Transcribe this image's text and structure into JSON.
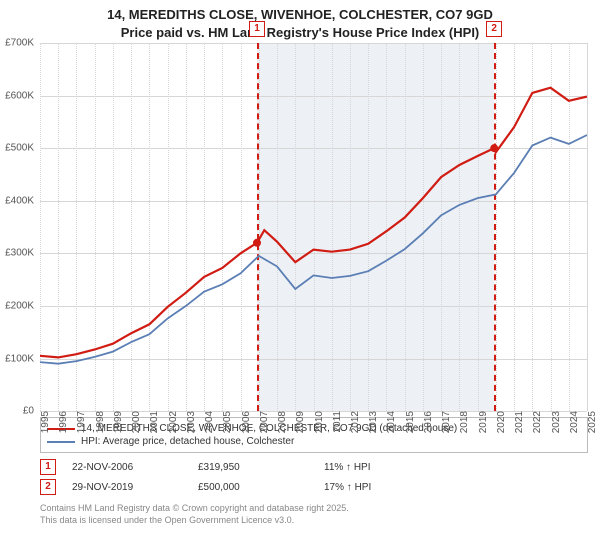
{
  "title_line1": "14, MEREDITHS CLOSE, WIVENHOE, COLCHESTER, CO7 9GD",
  "title_line2": "Price paid vs. HM Land Registry's House Price Index (HPI)",
  "chart": {
    "type": "line",
    "background_color": "#ffffff",
    "grid_color": "#d6d6d6",
    "shade_color": "#e8edf4",
    "x": {
      "min": 1995,
      "max": 2025,
      "ticks": [
        1995,
        1996,
        1997,
        1998,
        1999,
        2000,
        2001,
        2002,
        2003,
        2004,
        2005,
        2006,
        2007,
        2008,
        2009,
        2010,
        2011,
        2012,
        2013,
        2014,
        2015,
        2016,
        2017,
        2018,
        2019,
        2020,
        2021,
        2022,
        2023,
        2024,
        2025
      ]
    },
    "y": {
      "min": 0,
      "max": 700000,
      "step": 100000,
      "labels": [
        "£0",
        "£100K",
        "£200K",
        "£300K",
        "£400K",
        "£500K",
        "£600K",
        "£700K"
      ]
    },
    "shade_band": {
      "from": 2006.9,
      "to": 2019.91
    },
    "event_lines": [
      {
        "x": 2006.9,
        "id": "1"
      },
      {
        "x": 2019.91,
        "id": "2"
      }
    ],
    "series": [
      {
        "name": "price_paid",
        "color": "#d01c13",
        "width": 2.2,
        "points": [
          [
            1995,
            105000
          ],
          [
            1996,
            102000
          ],
          [
            1997,
            108000
          ],
          [
            1998,
            117000
          ],
          [
            1999,
            128000
          ],
          [
            2000,
            148000
          ],
          [
            2001,
            165000
          ],
          [
            2002,
            198000
          ],
          [
            2003,
            225000
          ],
          [
            2004,
            255000
          ],
          [
            2005,
            272000
          ],
          [
            2006,
            300000
          ],
          [
            2006.9,
            319950
          ],
          [
            2007.3,
            344000
          ],
          [
            2008,
            322000
          ],
          [
            2009,
            283000
          ],
          [
            2010,
            307000
          ],
          [
            2011,
            303000
          ],
          [
            2012,
            307000
          ],
          [
            2013,
            318000
          ],
          [
            2014,
            342000
          ],
          [
            2015,
            368000
          ],
          [
            2016,
            405000
          ],
          [
            2017,
            445000
          ],
          [
            2018,
            468000
          ],
          [
            2019,
            485000
          ],
          [
            2019.91,
            500000
          ],
          [
            2020,
            492000
          ],
          [
            2021,
            540000
          ],
          [
            2022,
            605000
          ],
          [
            2023,
            615000
          ],
          [
            2024,
            590000
          ],
          [
            2025,
            598000
          ]
        ],
        "markers": [
          [
            2006.9,
            319950
          ],
          [
            2019.91,
            500000
          ]
        ]
      },
      {
        "name": "hpi",
        "color": "#5b7fb5",
        "width": 1.8,
        "points": [
          [
            1995,
            93000
          ],
          [
            1996,
            90000
          ],
          [
            1997,
            95000
          ],
          [
            1998,
            103000
          ],
          [
            1999,
            113000
          ],
          [
            2000,
            131000
          ],
          [
            2001,
            146000
          ],
          [
            2002,
            176000
          ],
          [
            2003,
            200000
          ],
          [
            2004,
            227000
          ],
          [
            2005,
            241000
          ],
          [
            2006,
            262000
          ],
          [
            2007,
            295000
          ],
          [
            2008,
            275000
          ],
          [
            2009,
            232000
          ],
          [
            2010,
            258000
          ],
          [
            2011,
            253000
          ],
          [
            2012,
            257000
          ],
          [
            2013,
            266000
          ],
          [
            2014,
            286000
          ],
          [
            2015,
            308000
          ],
          [
            2016,
            338000
          ],
          [
            2017,
            372000
          ],
          [
            2018,
            392000
          ],
          [
            2019,
            405000
          ],
          [
            2020,
            412000
          ],
          [
            2021,
            453000
          ],
          [
            2022,
            505000
          ],
          [
            2023,
            520000
          ],
          [
            2024,
            508000
          ],
          [
            2025,
            525000
          ]
        ]
      }
    ]
  },
  "legend": [
    {
      "color": "#d01c13",
      "label": "14, MEREDITHS CLOSE, WIVENHOE, COLCHESTER, CO7 9GD (detached house)"
    },
    {
      "color": "#5b7fb5",
      "label": "HPI: Average price, detached house, Colchester"
    }
  ],
  "events": [
    {
      "id": "1",
      "date": "22-NOV-2006",
      "price": "£319,950",
      "delta": "11% ↑ HPI"
    },
    {
      "id": "2",
      "date": "29-NOV-2019",
      "price": "£500,000",
      "delta": "17% ↑ HPI"
    }
  ],
  "footer_line1": "Contains HM Land Registry data © Crown copyright and database right 2025.",
  "footer_line2": "This data is licensed under the Open Government Licence v3.0."
}
